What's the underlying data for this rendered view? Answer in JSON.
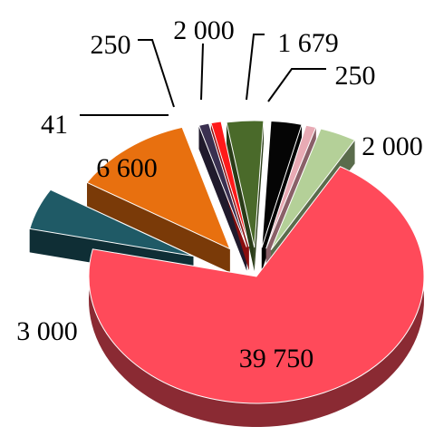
{
  "chart_data": {
    "type": "pie",
    "style": "3d-exploded",
    "slices": [
      {
        "label": "39 750",
        "value": 39750,
        "color": "#ff4a5a",
        "side": "#8a2a33"
      },
      {
        "label": "3 000",
        "value": 3000,
        "color": "#1f5a66",
        "side": "#0f2e35"
      },
      {
        "label": "6 600",
        "value": 6600,
        "color": "#e8700f",
        "side": "#7a3a08"
      },
      {
        "label": "41",
        "value": 41,
        "color": "#3a3050",
        "side": "#201a2c"
      },
      {
        "label": "250",
        "value": 250,
        "color": "#ff1a1a",
        "side": "#8a0e0e"
      },
      {
        "label": "2 000",
        "value": 2000,
        "color": "#4a6a2a",
        "side": "#2a3c18"
      },
      {
        "label": "1 679",
        "value": 1679,
        "color": "#050505",
        "side": "#000000"
      },
      {
        "label": "250",
        "value": 250,
        "color": "#e8aab4",
        "side": "#8a6068"
      },
      {
        "label": "2 000",
        "value": 2000,
        "color": "#b4d098",
        "side": "#5a6c4c"
      }
    ]
  }
}
